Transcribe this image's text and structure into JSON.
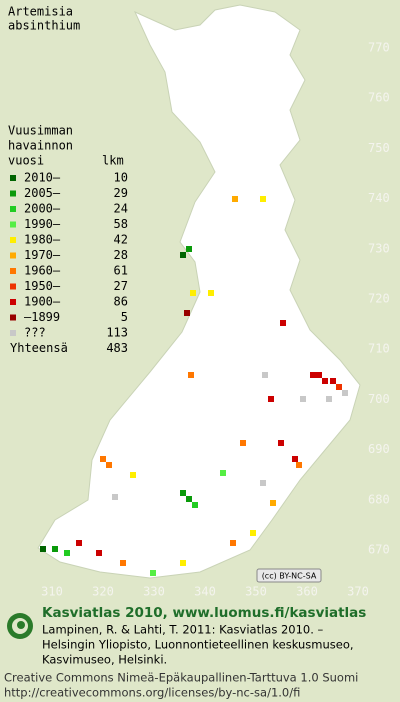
{
  "map": {
    "title": [
      "Artemisia",
      "absinthium"
    ],
    "legend": {
      "header": [
        "Vuusimman",
        "havainnon",
        "vuosi"
      ],
      "count_header": "lkm",
      "entries": [
        {
          "label": "2010–",
          "count": 10,
          "color": "#006400"
        },
        {
          "label": "2005–",
          "count": 29,
          "color": "#0a9a0a"
        },
        {
          "label": "2000–",
          "count": 24,
          "color": "#22cc22"
        },
        {
          "label": "1990–",
          "count": 58,
          "color": "#55ee44"
        },
        {
          "label": "1980–",
          "count": 42,
          "color": "#ffee00"
        },
        {
          "label": "1970–",
          "count": 28,
          "color": "#ffaa00"
        },
        {
          "label": "1960–",
          "count": 61,
          "color": "#ff7700"
        },
        {
          "label": "1950–",
          "count": 27,
          "color": "#ee3300"
        },
        {
          "label": "1900–",
          "count": 86,
          "color": "#cc0000"
        },
        {
          "label": "–1899",
          "count": 5,
          "color": "#990000"
        },
        {
          "label": "???",
          "count": 113,
          "color": "#c8c8c8"
        }
      ],
      "total_label": "Yhteensä",
      "total": 483
    },
    "grid_labels": {
      "north": [
        770,
        760,
        750,
        740,
        730,
        720,
        710,
        700,
        690,
        680,
        670
      ],
      "east": [
        310,
        320,
        330,
        340,
        350,
        360,
        370
      ]
    },
    "badge": "(cc) BY-NC-SA",
    "footer": {
      "heading": "Kasviatlas 2010, www.luomus.fi/kasviatlas",
      "citation": [
        "Lampinen, R. & Lahti, T. 2011: Kasviatlas 2010. –",
        "Helsingin Yliopisto, Luonnontieteellinen keskusmuseo,",
        "Kasvimuseo, Helsinki."
      ],
      "license": [
        "Creative Commons Nimeä-Epäkaupallinen-Tarttuva 1.0 Suomi",
        "http://creativecommons.org/licenses/by-nc-sa/1.0/fi"
      ]
    }
  }
}
